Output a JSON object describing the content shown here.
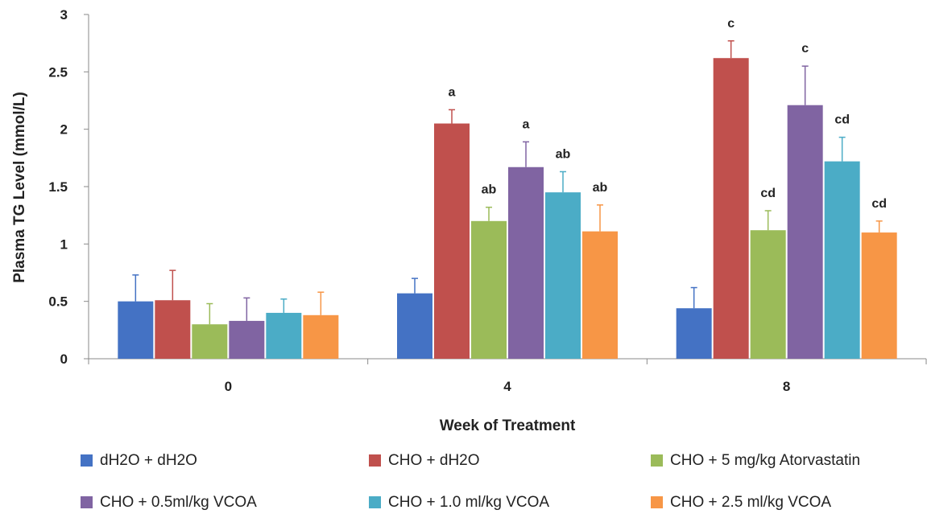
{
  "chart_data": {
    "type": "bar",
    "title": "",
    "xlabel": "Week of Treatment",
    "ylabel": "Plasma TG Level (mmol/L)",
    "ylim": [
      0,
      3
    ],
    "yticks": [
      "0",
      "0.5",
      "1",
      "1.5",
      "2",
      "2.5",
      "3"
    ],
    "categories": [
      "0",
      "4",
      "8"
    ],
    "grid": false,
    "legend_position": "bottom",
    "error_bars": true,
    "series": [
      {
        "name": "dH2O + dH2O",
        "color": "#4472C4",
        "values": [
          0.5,
          0.57,
          0.44
        ],
        "errors": [
          0.23,
          0.13,
          0.18
        ],
        "labels": [
          "",
          "",
          ""
        ]
      },
      {
        "name": "CHO + dH2O",
        "color": "#C0504D",
        "values": [
          0.51,
          2.05,
          2.62
        ],
        "errors": [
          0.26,
          0.12,
          0.15
        ],
        "labels": [
          "",
          "a",
          "c"
        ]
      },
      {
        "name": "CHO + 5 mg/kg Atorvastatin",
        "color": "#9BBB59",
        "values": [
          0.3,
          1.2,
          1.12
        ],
        "errors": [
          0.18,
          0.12,
          0.17
        ],
        "labels": [
          "",
          "ab",
          "cd"
        ]
      },
      {
        "name": "CHO + 0.5ml/kg VCOA",
        "color": "#8064A2",
        "values": [
          0.33,
          1.67,
          2.21
        ],
        "errors": [
          0.2,
          0.22,
          0.34
        ],
        "labels": [
          "",
          "a",
          "c"
        ]
      },
      {
        "name": "CHO + 1.0 ml/kg VCOA",
        "color": "#4BACC6",
        "values": [
          0.4,
          1.45,
          1.72
        ],
        "errors": [
          0.12,
          0.18,
          0.21
        ],
        "labels": [
          "",
          "ab",
          "cd"
        ]
      },
      {
        "name": "CHO + 2.5 ml/kg VCOA",
        "color": "#F79646",
        "values": [
          0.38,
          1.11,
          1.1
        ],
        "errors": [
          0.2,
          0.23,
          0.1
        ],
        "labels": [
          "",
          "ab",
          "cd"
        ]
      }
    ]
  }
}
